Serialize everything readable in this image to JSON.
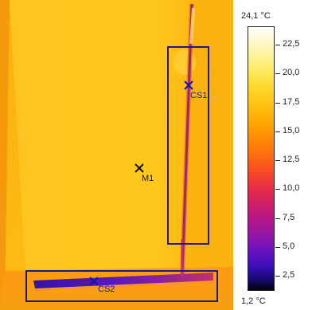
{
  "image": {
    "description_colors": {
      "background": "#fcb812",
      "wall_light": "#ffc21c",
      "pipe": "#a02a6a",
      "box_stroke": "#1a1a8c"
    }
  },
  "measurements": {
    "cs1": {
      "label": "CS1",
      "type": "cold-spot"
    },
    "cs2": {
      "label": "CS2",
      "type": "cold-spot"
    },
    "m1": {
      "label": "M1",
      "type": "measure-point"
    }
  },
  "scale": {
    "max_label": "24,1 °C",
    "min_label": "1,2 °C",
    "ticks": [
      {
        "label": "22,5",
        "value": 22.5
      },
      {
        "label": "20,0",
        "value": 20.0
      },
      {
        "label": "17,5",
        "value": 17.5
      },
      {
        "label": "15,0",
        "value": 15.0
      },
      {
        "label": "12,5",
        "value": 12.5
      },
      {
        "label": "10,0",
        "value": 10.0
      },
      {
        "label": "7,5",
        "value": 7.5
      },
      {
        "label": "5,0",
        "value": 5.0
      },
      {
        "label": "2,5",
        "value": 2.5
      }
    ],
    "range": [
      1.2,
      24.1
    ]
  }
}
